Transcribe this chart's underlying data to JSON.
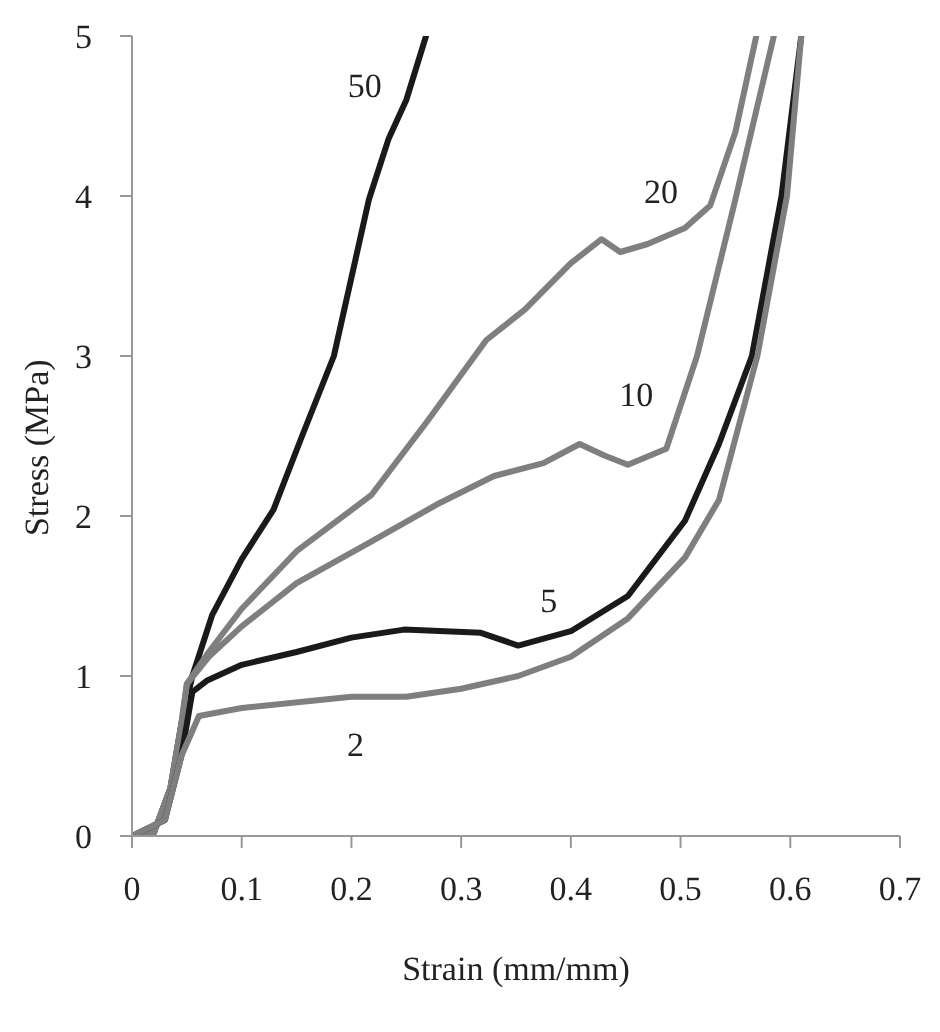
{
  "chart_data": {
    "type": "line",
    "xlabel": "Strain (mm/mm)",
    "ylabel": "Stress (MPa)",
    "xlim": [
      0,
      0.7
    ],
    "xticks": [
      0,
      0.1,
      0.2,
      0.3,
      0.4,
      0.5,
      0.6,
      0.7
    ],
    "ylim": [
      0,
      5
    ],
    "yticks": [
      0,
      1,
      2,
      3,
      4,
      5
    ],
    "grid": false,
    "legend": false,
    "marker": "none",
    "line_style": "solid",
    "series": [
      {
        "name": "50",
        "color": "#1a1a1a",
        "x": [
          0,
          0.02,
          0.035,
          0.045,
          0.055,
          0.073,
          0.1,
          0.129,
          0.155,
          0.184,
          0.216,
          0.234,
          0.25,
          0.268
        ],
        "values": [
          0,
          0.02,
          0.3,
          0.7,
          1.0,
          1.38,
          1.73,
          2.04,
          2.5,
          3.0,
          3.98,
          4.36,
          4.6,
          5.0
        ]
      },
      {
        "name": "20",
        "color": "#7f7f7f",
        "x": [
          0,
          0.02,
          0.035,
          0.045,
          0.05,
          0.07,
          0.1,
          0.15,
          0.218,
          0.27,
          0.323,
          0.358,
          0.4,
          0.428,
          0.445,
          0.47,
          0.504,
          0.527,
          0.55,
          0.569
        ],
        "values": [
          0,
          0.02,
          0.3,
          0.7,
          0.95,
          1.15,
          1.42,
          1.78,
          2.13,
          2.6,
          3.1,
          3.29,
          3.58,
          3.73,
          3.65,
          3.7,
          3.8,
          3.94,
          4.4,
          5.0
        ]
      },
      {
        "name": "10",
        "color": "#7f7f7f",
        "x": [
          0,
          0.02,
          0.035,
          0.045,
          0.05,
          0.07,
          0.1,
          0.15,
          0.218,
          0.28,
          0.33,
          0.375,
          0.408,
          0.43,
          0.452,
          0.487,
          0.515,
          0.55,
          0.585
        ],
        "values": [
          0,
          0.02,
          0.3,
          0.7,
          0.95,
          1.12,
          1.31,
          1.58,
          1.84,
          2.08,
          2.25,
          2.33,
          2.45,
          2.38,
          2.32,
          2.42,
          3.0,
          3.98,
          5.0
        ]
      },
      {
        "name": "5",
        "color": "#1a1a1a",
        "x": [
          0,
          0.03,
          0.045,
          0.055,
          0.068,
          0.1,
          0.15,
          0.2,
          0.248,
          0.318,
          0.352,
          0.4,
          0.452,
          0.504,
          0.535,
          0.565,
          0.592,
          0.61
        ],
        "values": [
          0,
          0.1,
          0.5,
          0.9,
          0.97,
          1.07,
          1.15,
          1.24,
          1.29,
          1.27,
          1.19,
          1.28,
          1.5,
          1.97,
          2.45,
          3.0,
          4.0,
          5.0
        ]
      },
      {
        "name": "2",
        "color": "#7f7f7f",
        "x": [
          0,
          0.03,
          0.045,
          0.061,
          0.1,
          0.2,
          0.25,
          0.3,
          0.352,
          0.4,
          0.452,
          0.504,
          0.535,
          0.57,
          0.597,
          0.61
        ],
        "values": [
          0,
          0.1,
          0.5,
          0.75,
          0.8,
          0.87,
          0.87,
          0.92,
          1.0,
          1.12,
          1.36,
          1.74,
          2.1,
          3.0,
          4.0,
          5.0
        ]
      }
    ]
  }
}
